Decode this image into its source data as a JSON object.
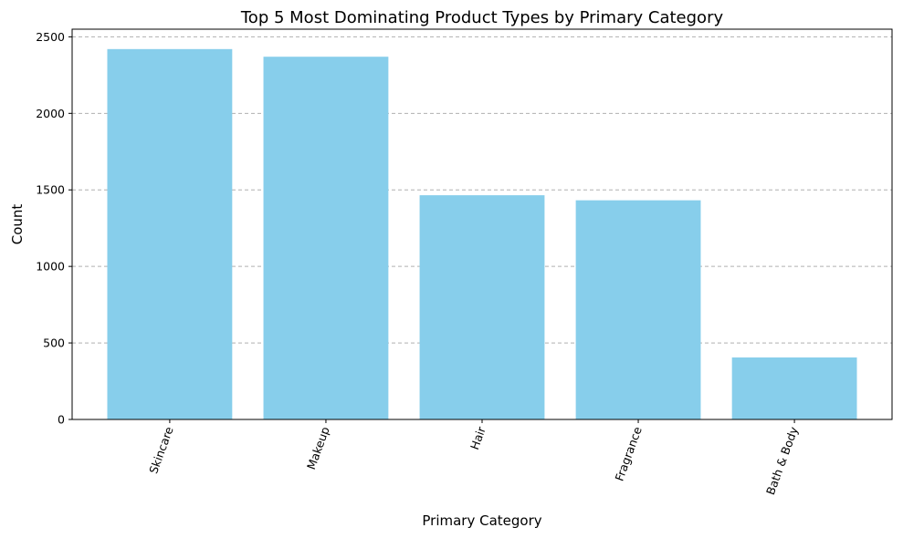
{
  "chart_data": {
    "type": "bar",
    "title": "Top 5 Most Dominating Product Types by Primary Category",
    "xlabel": "Primary Category",
    "ylabel": "Count",
    "categories": [
      "Skincare",
      "Makeup",
      "Hair",
      "Fragrance",
      "Bath & Body"
    ],
    "values": [
      2420,
      2370,
      1465,
      1432,
      405
    ],
    "ylim": [
      0,
      2550
    ],
    "yticks": [
      0,
      500,
      1000,
      1500,
      2000,
      2500
    ],
    "grid": "y-dashed",
    "bar_color": "#87ceeb",
    "xtick_rotation_deg": 70
  }
}
